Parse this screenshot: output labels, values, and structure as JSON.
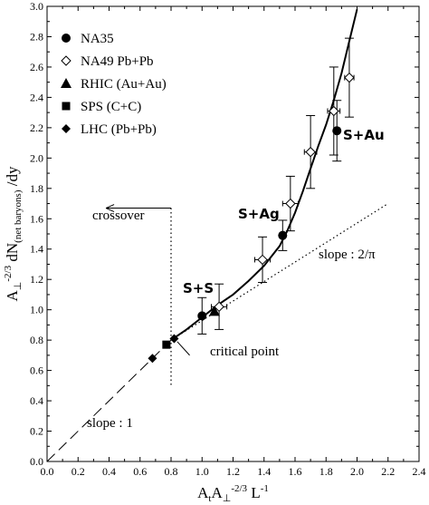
{
  "chart_data": {
    "type": "scatter",
    "xlim": [
      0.0,
      2.4
    ],
    "ylim": [
      0.0,
      3.0
    ],
    "x_ticks": [
      "0.0",
      "0.2",
      "0.4",
      "0.6",
      "0.8",
      "1.0",
      "1.2",
      "1.4",
      "1.6",
      "1.8",
      "2.0",
      "2.2",
      "2.4"
    ],
    "y_ticks": [
      "0.0",
      "0.2",
      "0.4",
      "0.6",
      "0.8",
      "1.0",
      "1.2",
      "1.4",
      "1.6",
      "1.8",
      "2.0",
      "2.2",
      "2.4",
      "2.6",
      "2.8",
      "3.0"
    ],
    "xlabel": {
      "base1": "A",
      "sub1": "t",
      "base2": "A",
      "sub2": "⊥",
      "sup": "-2/3",
      "base3": " L",
      "sup3": "-1"
    },
    "ylabel": {
      "base1": "A",
      "sub1": "⊥",
      "sup1": "-2/3",
      "base2": " dN",
      "sub2": "(net baryons)",
      "base3": " /dy"
    },
    "legend_position": "top-left",
    "legend": [
      {
        "marker": "circle",
        "label": "NA35"
      },
      {
        "marker": "diamond-open",
        "label": "NA49 Pb+Pb"
      },
      {
        "marker": "triangle",
        "label": "RHIC (Au+Au)"
      },
      {
        "marker": "square",
        "label": "SPS (C+C)"
      },
      {
        "marker": "diamond",
        "label": "LHC (Pb+Pb)"
      }
    ],
    "series": [
      {
        "name": "NA35",
        "marker": "circle",
        "points": [
          {
            "x": 1.0,
            "y": 0.96,
            "yerr": 0.12
          },
          {
            "x": 1.52,
            "y": 1.49,
            "yerr": 0.1
          },
          {
            "x": 1.87,
            "y": 2.18,
            "yerr": 0.2
          }
        ]
      },
      {
        "name": "NA49 Pb+Pb",
        "marker": "diamond-open",
        "points": [
          {
            "x": 1.11,
            "y": 1.02,
            "yerr": 0.15,
            "xerr": 0.05
          },
          {
            "x": 1.39,
            "y": 1.33,
            "yerr": 0.15,
            "xerr": 0.05
          },
          {
            "x": 1.57,
            "y": 1.7,
            "yerr": 0.18,
            "xerr": 0.05
          },
          {
            "x": 1.7,
            "y": 2.04,
            "yerr": 0.24,
            "xerr": 0.04
          },
          {
            "x": 1.85,
            "y": 2.31,
            "yerr": 0.29,
            "xerr": 0.04
          },
          {
            "x": 1.95,
            "y": 2.53,
            "yerr": 0.26,
            "xerr": 0.03
          }
        ]
      },
      {
        "name": "RHIC (Au+Au)",
        "marker": "triangle",
        "points": [
          {
            "x": 1.08,
            "y": 0.99
          }
        ]
      },
      {
        "name": "SPS (C+C)",
        "marker": "square",
        "points": [
          {
            "x": 0.77,
            "y": 0.77
          }
        ]
      },
      {
        "name": "LHC (Pb+Pb)",
        "marker": "diamond",
        "points": [
          {
            "x": 0.68,
            "y": 0.68
          },
          {
            "x": 0.82,
            "y": 0.81
          }
        ]
      }
    ],
    "curves": {
      "solid": [
        [
          0.8,
          0.8
        ],
        [
          0.9,
          0.87
        ],
        [
          1.0,
          0.95
        ],
        [
          1.1,
          1.03
        ],
        [
          1.2,
          1.1
        ],
        [
          1.3,
          1.19
        ],
        [
          1.4,
          1.29
        ],
        [
          1.5,
          1.42
        ],
        [
          1.55,
          1.52
        ],
        [
          1.6,
          1.64
        ],
        [
          1.65,
          1.78
        ],
        [
          1.7,
          1.93
        ],
        [
          1.75,
          2.08
        ],
        [
          1.8,
          2.22
        ],
        [
          1.85,
          2.38
        ],
        [
          1.9,
          2.56
        ],
        [
          1.95,
          2.77
        ],
        [
          2.0,
          2.98
        ]
      ],
      "dashed": [
        [
          0.0,
          0.0
        ],
        [
          0.8,
          0.8
        ]
      ],
      "dotted": [
        [
          0.8,
          0.8
        ],
        [
          2.2,
          1.7
        ]
      ],
      "crossover_vline_x": 0.8
    },
    "annotations": {
      "crossover": "crossover",
      "critical_point": "critical point",
      "slope1": "slope : 1",
      "slope2": "slope : 2/π",
      "ss": "S+S",
      "sag": "S+Ag",
      "sau": "S+Au"
    }
  }
}
